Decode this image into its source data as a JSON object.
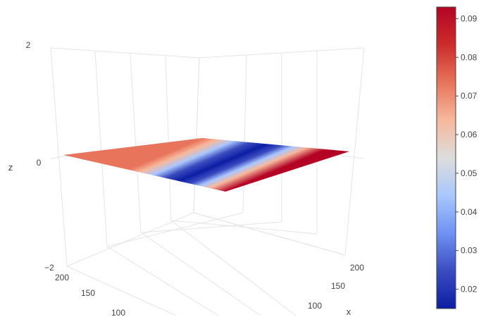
{
  "chart_data": {
    "type": "surface",
    "title": "",
    "colorscale": "coolwarm",
    "colorscale_stops": [
      "#0b1ea4",
      "#3b4cc0",
      "#6f92f3",
      "#aac7fd",
      "#dddddd",
      "#f7b89c",
      "#e7745b",
      "#cc2c2b",
      "#b40426"
    ],
    "axes": {
      "x": {
        "title": "x",
        "ticks": [
          "100",
          "150",
          "200"
        ]
      },
      "y": {
        "title": "",
        "ticks": [
          "100",
          "150",
          "200"
        ]
      },
      "z": {
        "title": "z",
        "ticks": [
          "−2",
          "0",
          "2"
        ],
        "range": [
          -2,
          2
        ]
      }
    },
    "colorbar": {
      "range": [
        0.015,
        0.093
      ],
      "ticks": [
        "0.02",
        "0.03",
        "0.04",
        "0.05",
        "0.06",
        "0.07",
        "0.08",
        "0.09"
      ]
    },
    "surface_value_range": [
      0.015,
      0.093
    ]
  }
}
